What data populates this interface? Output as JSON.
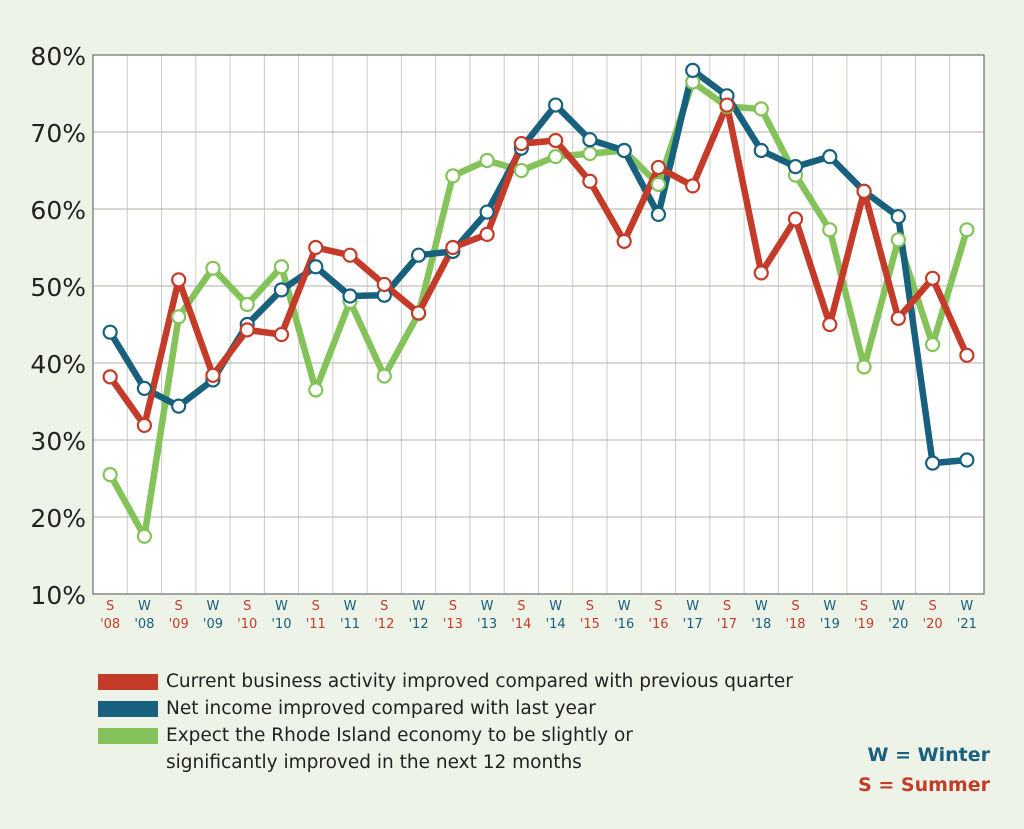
{
  "chart_data": {
    "type": "line",
    "ylim": [
      10,
      80
    ],
    "yticks": [
      "10%",
      "20%",
      "30%",
      "40%",
      "50%",
      "60%",
      "70%",
      "80%"
    ],
    "categories": [
      {
        "season": "S",
        "year": "'08"
      },
      {
        "season": "W",
        "year": "'08"
      },
      {
        "season": "S",
        "year": "'09"
      },
      {
        "season": "W",
        "year": "'09"
      },
      {
        "season": "S",
        "year": "'10"
      },
      {
        "season": "W",
        "year": "'10"
      },
      {
        "season": "S",
        "year": "'11"
      },
      {
        "season": "W",
        "year": "'11"
      },
      {
        "season": "S",
        "year": "'12"
      },
      {
        "season": "W",
        "year": "'12"
      },
      {
        "season": "S",
        "year": "'13"
      },
      {
        "season": "W",
        "year": "'13"
      },
      {
        "season": "S",
        "year": "'14"
      },
      {
        "season": "W",
        "year": "'14"
      },
      {
        "season": "S",
        "year": "'15"
      },
      {
        "season": "W",
        "year": "'16"
      },
      {
        "season": "S",
        "year": "'16"
      },
      {
        "season": "W",
        "year": "'17"
      },
      {
        "season": "S",
        "year": "'17"
      },
      {
        "season": "W",
        "year": "'18"
      },
      {
        "season": "S",
        "year": "'18"
      },
      {
        "season": "W",
        "year": "'19"
      },
      {
        "season": "S",
        "year": "'19"
      },
      {
        "season": "W",
        "year": "'20"
      },
      {
        "season": "S",
        "year": "'20"
      },
      {
        "season": "W",
        "year": "'21"
      }
    ],
    "series": [
      {
        "name": "Expect the Rhode Island economy to be slightly or significantly improved in the next 12 months",
        "color": "#84c25a",
        "values": [
          25.5,
          17.5,
          46.0,
          52.3,
          47.6,
          52.5,
          36.5,
          48.0,
          38.3,
          46.4,
          64.3,
          66.3,
          65.0,
          66.8,
          67.2,
          67.6,
          63.2,
          76.5,
          73.3,
          73.0,
          64.4,
          57.3,
          39.5,
          56.0,
          42.4,
          57.3
        ]
      },
      {
        "name": "Net income improved compared with last year",
        "color": "#17607e",
        "values": [
          44.0,
          36.7,
          34.4,
          37.8,
          45.0,
          49.5,
          52.5,
          48.7,
          48.8,
          54.0,
          54.5,
          59.6,
          67.9,
          73.5,
          69.0,
          67.6,
          59.3,
          78.0,
          74.7,
          67.6,
          65.5,
          66.8,
          62.3,
          59.0,
          27.0,
          27.4
        ]
      },
      {
        "name": "Current business activity improved compared with previous quarter",
        "color": "#c43b2a",
        "values": [
          38.2,
          31.9,
          50.8,
          38.4,
          44.3,
          43.7,
          55.0,
          54.0,
          50.2,
          46.5,
          55.0,
          56.7,
          68.5,
          68.9,
          63.6,
          55.8,
          65.4,
          63.0,
          73.5,
          51.7,
          58.7,
          45.0,
          62.3,
          45.8,
          51.0,
          41.0
        ]
      }
    ],
    "season_colors": {
      "S": "#c43b2a",
      "W": "#17607e"
    },
    "grid": true
  },
  "legend": [
    {
      "label": "Current business activity improved compared with previous quarter",
      "color": "#c43b2a"
    },
    {
      "label": "Net income improved compared with last year",
      "color": "#17607e"
    },
    {
      "label": "Expect the Rhode Island economy to be slightly or significantly improved in the next 12 months",
      "color": "#84c25a"
    }
  ],
  "key": {
    "winter": "W = Winter",
    "summer": "S = Summer"
  }
}
